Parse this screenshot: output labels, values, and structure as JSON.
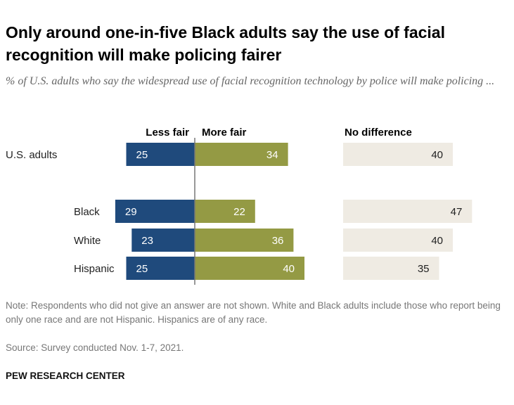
{
  "title": "Only around one-in-five Black adults say the use of facial recognition will make policing fairer",
  "subtitle": "% of U.S. adults who say the widespread use of facial recognition technology by police will make policing ...",
  "chart_data": {
    "type": "bar",
    "orientation": "horizontal-diverging",
    "categories": [
      "U.S. adults",
      "Black",
      "White",
      "Hispanic"
    ],
    "series": [
      {
        "name": "Less fair",
        "values": [
          25,
          29,
          23,
          25
        ],
        "color": "#1f4a7c"
      },
      {
        "name": "More fair",
        "values": [
          34,
          22,
          36,
          40
        ],
        "color": "#949a44"
      },
      {
        "name": "No difference",
        "values": [
          40,
          47,
          40,
          35
        ],
        "color": "#efebe3"
      }
    ],
    "grid": false,
    "legend": "top column headers"
  },
  "note": "Note: Respondents who did not give an answer are not shown. White and Black adults include those who report being only one race and are not Hispanic. Hispanics are of any race.",
  "source": "Source: Survey conducted Nov. 1-7, 2021.",
  "brand": "PEW RESEARCH CENTER"
}
